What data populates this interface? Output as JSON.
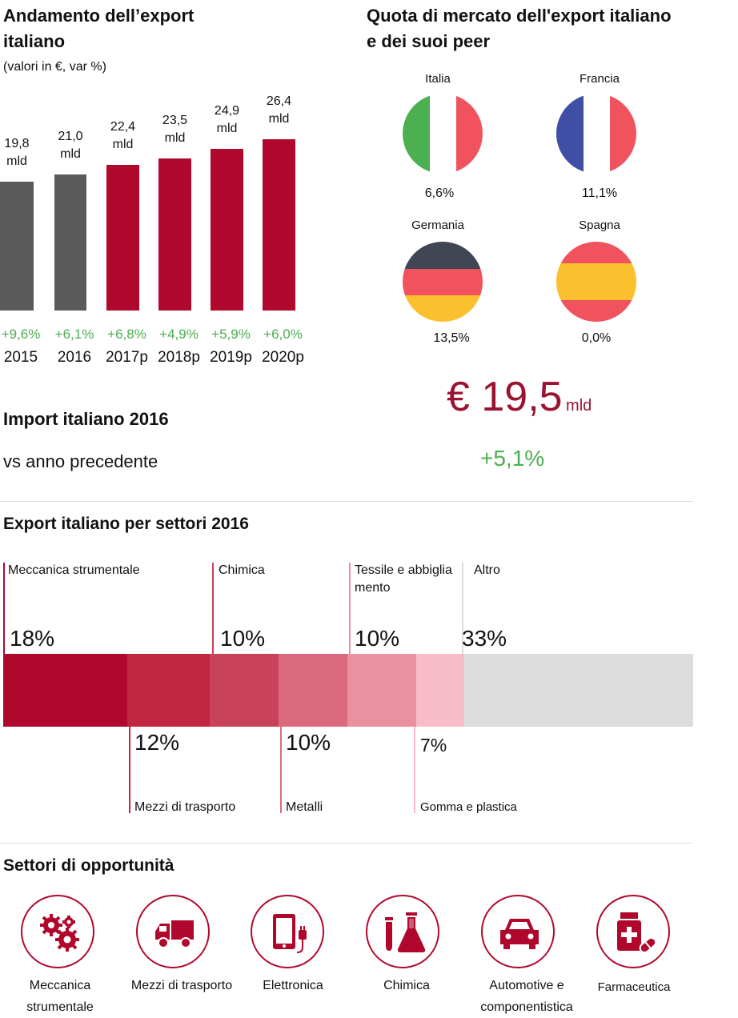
{
  "export_title_line1": "Andamento dell’export",
  "export_title_line2": "italiano",
  "export_subtitle": "(valori in €, var %)",
  "chart_data": {
    "type": "bar",
    "title": "Andamento dell’export italiano",
    "categories": [
      "2015",
      "2016",
      "2017p",
      "2018p",
      "2019p",
      "2020p"
    ],
    "values": [
      19.8,
      21.0,
      22.4,
      23.5,
      24.9,
      26.4
    ],
    "value_labels": [
      "19,8",
      "21,0",
      "22,4",
      "23,5",
      "24,9",
      "26,4"
    ],
    "unit": "mld",
    "growth": [
      "+9,6%",
      "+6,1%",
      "+6,8%",
      "+4,9%",
      "+5,9%",
      "+6,0%"
    ],
    "ylim": [
      0,
      26.4
    ],
    "colors": [
      "#5a5a5a",
      "#5a5a5a",
      "#b0082c",
      "#b0082c",
      "#b0082c",
      "#b0082c"
    ]
  },
  "market_share": {
    "title_line1": "Quota di mercato dell'export italiano",
    "title_line2": "e dei suoi peer",
    "countries": [
      {
        "name": "Italia",
        "value": "6,6%"
      },
      {
        "name": "Francia",
        "value": "11,1%"
      },
      {
        "name": "Germania",
        "value": "13,5%"
      },
      {
        "name": "Spagna",
        "value": "0,0%"
      }
    ]
  },
  "import": {
    "title": "Import italiano 2016",
    "value": "€ 19,5",
    "unit": "mld",
    "vs_label": "vs anno precedente",
    "change": "+5,1%"
  },
  "sectors": {
    "title": "Export italiano per settori 2016",
    "items": [
      {
        "name": "Meccanica strumentale",
        "pct": "18%",
        "value": 18,
        "color": "#b0082c"
      },
      {
        "name": "Mezzi di trasporto",
        "pct": "12%",
        "value": 12,
        "color": "#c02640"
      },
      {
        "name": "Chimica",
        "pct": "10%",
        "value": 10,
        "color": "#c8435a"
      },
      {
        "name": "Metalli",
        "pct": "10%",
        "value": 10,
        "color": "#dc6a7e"
      },
      {
        "name": "Tessile e abbiglia mento",
        "name_line1": "Tessile e abbiglia",
        "name_line2": "mento",
        "pct": "10%",
        "value": 10,
        "color": "#ea919f"
      },
      {
        "name": "Gomma e plastica",
        "pct": "7%",
        "value": 7,
        "color": "#f8bcc8"
      },
      {
        "name": "Altro",
        "pct": "33%",
        "value": 33,
        "color": "#dcdcdc"
      }
    ]
  },
  "opportunities": {
    "title": "Settori di opportunità",
    "items": [
      {
        "line1": "Meccanica",
        "line2": "strumentale",
        "icon": "gears-icon"
      },
      {
        "line1": "Mezzi di trasporto",
        "line2": "",
        "icon": "truck-icon"
      },
      {
        "line1": "Elettronica",
        "line2": "",
        "icon": "tablet-plug-icon"
      },
      {
        "line1": "Chimica",
        "line2": "",
        "icon": "flask-icon"
      },
      {
        "line1": "Automotive e",
        "line2": "componentistica",
        "icon": "car-icon"
      },
      {
        "line1": "Farmaceutica",
        "line2": "",
        "icon": "medicine-icon"
      }
    ]
  },
  "colors": {
    "accent": "#b0082c",
    "gray_bar": "#5a5a5a",
    "positive": "#4caf50",
    "import_value": "#9b1230"
  }
}
